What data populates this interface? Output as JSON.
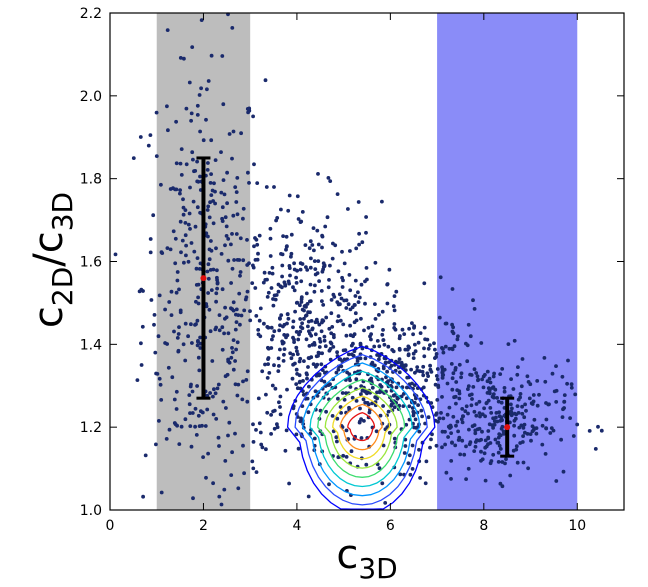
{
  "chart_data": {
    "type": "scatter",
    "xlabel": {
      "base": "c",
      "sub": "3D"
    },
    "ylabel": {
      "base": "c",
      "sub": "2D",
      "sep": "/",
      "base2": "c",
      "sub2": "3D"
    },
    "xlim": [
      0,
      11
    ],
    "ylim": [
      1.0,
      2.2
    ],
    "x_ticks": [
      0,
      2,
      4,
      6,
      8,
      10
    ],
    "y_ticks": [
      1.0,
      1.2,
      1.4,
      1.6,
      1.8,
      2.0,
      2.2
    ],
    "x_tick_labels": [
      "0",
      "2",
      "4",
      "6",
      "8",
      "10"
    ],
    "y_tick_labels": [
      "1.0",
      "1.2",
      "1.4",
      "1.6",
      "1.8",
      "2.0",
      "2.2"
    ],
    "grid": false,
    "shaded_regions": [
      {
        "x": [
          1,
          3
        ],
        "color": "#bdbdbd"
      },
      {
        "x": [
          7,
          10
        ],
        "color": "#8a8cf8"
      }
    ],
    "error_bars": [
      {
        "x": 2.0,
        "y": 1.56,
        "ylow": 1.27,
        "yhigh": 1.85
      },
      {
        "x": 8.5,
        "y": 1.2,
        "ylow": 1.13,
        "yhigh": 1.27
      }
    ],
    "clusters": [
      {
        "cx": 2.0,
        "cy": 1.55,
        "sx": 0.65,
        "sy": 0.28,
        "n": 380
      },
      {
        "cx": 4.2,
        "cy": 1.42,
        "sx": 0.8,
        "sy": 0.16,
        "n": 500
      },
      {
        "cx": 6.3,
        "cy": 1.3,
        "sx": 0.9,
        "sy": 0.09,
        "n": 420
      },
      {
        "cx": 8.3,
        "cy": 1.22,
        "sx": 0.75,
        "sy": 0.07,
        "n": 260
      }
    ],
    "contours": {
      "center": [
        5.4,
        1.2
      ],
      "levels": 9,
      "colors": [
        "#0000ff",
        "#2a4bff",
        "#0096ff",
        "#00c8d2",
        "#3cdc6e",
        "#9be63c",
        "#f0dc28",
        "#ff8c1e",
        "#e61414"
      ]
    },
    "colors": {
      "points": "#1a2a6c",
      "center_marker": "#e01010",
      "error_bar": "#000000"
    }
  }
}
